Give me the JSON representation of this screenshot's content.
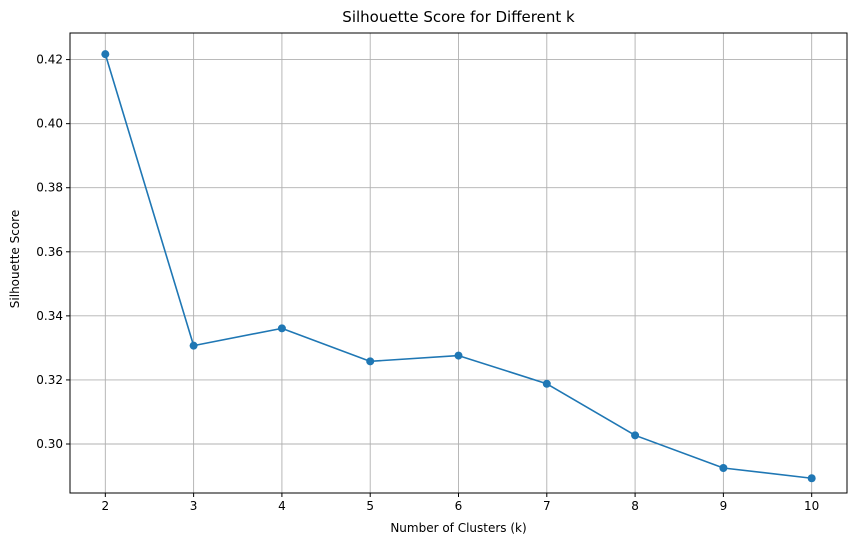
{
  "chart_data": {
    "type": "line",
    "title": "Silhouette Score for Different k",
    "xlabel": "Number of Clusters (k)",
    "ylabel": "Silhouette Score",
    "x": [
      2,
      3,
      4,
      5,
      6,
      7,
      8,
      9,
      10
    ],
    "series": [
      {
        "values": [
          0.4217,
          0.3307,
          0.3361,
          0.3258,
          0.3276,
          0.3188,
          0.3027,
          0.2925,
          0.2893
        ],
        "color": "#1f77b4",
        "marker": "circle"
      }
    ],
    "xticks": [
      2,
      3,
      4,
      5,
      6,
      7,
      8,
      9,
      10
    ],
    "yticks": [
      0.3,
      0.32,
      0.34,
      0.36,
      0.38,
      0.4,
      0.42
    ],
    "ytick_labels": [
      "0.30",
      "0.32",
      "0.34",
      "0.36",
      "0.38",
      "0.40",
      "0.42"
    ],
    "xlim": [
      1.6,
      10.4
    ],
    "ylim": [
      0.2847,
      0.4283
    ],
    "grid": true,
    "colors": {
      "line": "#1f77b4",
      "grid": "#b0b0b0",
      "axes": "#000000",
      "background": "#ffffff"
    }
  }
}
